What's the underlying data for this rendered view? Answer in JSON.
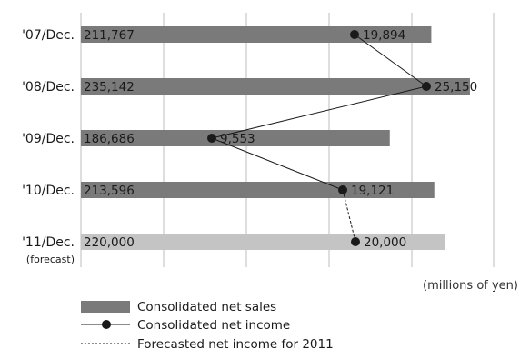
{
  "chart_data": {
    "type": "bar",
    "orientation": "horizontal",
    "categories": [
      "'07/Dec.",
      "'08/Dec.",
      "'09/Dec.",
      "'10/Dec.",
      "'11/Dec."
    ],
    "category_notes": [
      "",
      "",
      "",
      "",
      "(forecast)"
    ],
    "series": [
      {
        "name": "Consolidated net sales",
        "type": "bar",
        "values": [
          211767,
          235142,
          186686,
          213596,
          220000
        ],
        "labels": [
          "211,767",
          "235,142",
          "186,686",
          "213,596",
          "220,000"
        ],
        "colors": [
          "#7a7a7a",
          "#7a7a7a",
          "#7a7a7a",
          "#7a7a7a",
          "#c4c4c4"
        ]
      },
      {
        "name": "Consolidated net income",
        "type": "line",
        "values": [
          19894,
          25150,
          9553,
          19121,
          20000
        ],
        "labels": [
          "19,894",
          "25,150",
          "9,553",
          "19,121",
          "20,000"
        ],
        "forecast_from_index": 4
      }
    ],
    "unit_note": "(millions of yen)",
    "grid": true,
    "legend_position": "bottom-left",
    "legend": [
      {
        "name": "Consolidated net sales",
        "style": "bar"
      },
      {
        "name": "Consolidated net income",
        "style": "line-marker"
      },
      {
        "name": "Forecasted net income for 2011",
        "style": "dashed"
      }
    ],
    "colors": {
      "bar": "#7a7a7a",
      "bar_forecast": "#c4c4c4",
      "grid": "#bdbdbd",
      "line": "#1a1a1a"
    }
  }
}
